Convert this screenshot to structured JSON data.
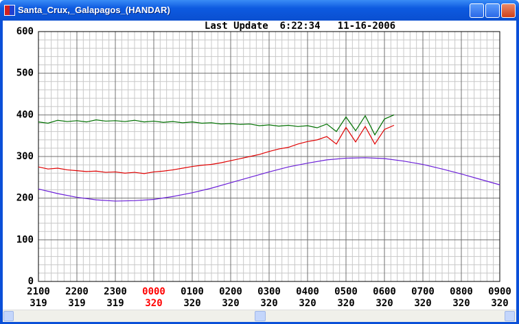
{
  "window_title": "Santa_Crux,_Galapagos_(HANDAR)",
  "chart_data": {
    "type": "line",
    "subtitle": "Last Update  6:22:34   11-16-2006",
    "xlim": [
      0,
      12
    ],
    "xticks": [
      {
        "value": 0,
        "label": "2100"
      },
      {
        "value": 1,
        "label": "2200"
      },
      {
        "value": 2,
        "label": "2300"
      },
      {
        "value": 3,
        "label": "0000"
      },
      {
        "value": 4,
        "label": "0100"
      },
      {
        "value": 5,
        "label": "0200"
      },
      {
        "value": 6,
        "label": "0300"
      },
      {
        "value": 7,
        "label": "0400"
      },
      {
        "value": 8,
        "label": "0500"
      },
      {
        "value": 9,
        "label": "0600"
      },
      {
        "value": 10,
        "label": "0700"
      },
      {
        "value": 11,
        "label": "0800"
      },
      {
        "value": 12,
        "label": "0900"
      }
    ],
    "xtick_days": [
      "319",
      "319",
      "319",
      "320",
      "320",
      "320",
      "320",
      "320",
      "320",
      "320",
      "320",
      "320",
      "320"
    ],
    "xtick_highlight": {
      "index": 3,
      "color": "#ff0000"
    },
    "ylim": [
      0,
      600
    ],
    "yticks": [
      0,
      100,
      200,
      300,
      400,
      500,
      600
    ],
    "grid": true,
    "series": [
      {
        "color": "#007000",
        "x": [
          0,
          0.25,
          0.5,
          0.75,
          1,
          1.25,
          1.5,
          1.75,
          2,
          2.25,
          2.5,
          2.75,
          3,
          3.25,
          3.5,
          3.75,
          4,
          4.25,
          4.5,
          4.75,
          5,
          5.25,
          5.5,
          5.75,
          6,
          6.25,
          6.5,
          6.75,
          7,
          7.25,
          7.5,
          7.75,
          8,
          8.25,
          8.5,
          8.75,
          9,
          9.25
        ],
        "values": [
          383,
          380,
          387,
          384,
          386,
          383,
          388,
          385,
          386,
          384,
          387,
          383,
          385,
          382,
          384,
          381,
          383,
          380,
          381,
          378,
          379,
          377,
          378,
          374,
          376,
          373,
          375,
          372,
          374,
          369,
          378,
          360,
          395,
          362,
          398,
          352,
          390,
          400
        ]
      },
      {
        "color": "#e00000",
        "x": [
          0,
          0.25,
          0.5,
          0.75,
          1,
          1.25,
          1.5,
          1.75,
          2,
          2.25,
          2.5,
          2.75,
          3,
          3.25,
          3.5,
          3.75,
          4,
          4.25,
          4.5,
          4.75,
          5,
          5.25,
          5.5,
          5.75,
          6,
          6.25,
          6.5,
          6.75,
          7,
          7.25,
          7.5,
          7.75,
          8,
          8.25,
          8.5,
          8.75,
          9,
          9.25
        ],
        "values": [
          275,
          270,
          272,
          268,
          266,
          264,
          265,
          262,
          263,
          260,
          262,
          259,
          263,
          265,
          268,
          272,
          276,
          279,
          281,
          285,
          290,
          295,
          300,
          305,
          312,
          318,
          322,
          330,
          336,
          340,
          348,
          330,
          370,
          335,
          372,
          330,
          365,
          375
        ]
      },
      {
        "color": "#6a1ed8",
        "x": [
          0,
          0.5,
          1,
          1.5,
          2,
          2.5,
          3,
          3.5,
          4,
          4.5,
          5,
          5.5,
          6,
          6.5,
          7,
          7.5,
          8,
          8.5,
          9,
          9.5,
          10,
          10.5,
          11,
          11.5,
          12
        ],
        "values": [
          222,
          211,
          202,
          196,
          193,
          194,
          197,
          204,
          213,
          224,
          237,
          250,
          263,
          275,
          284,
          292,
          296,
          297,
          295,
          289,
          281,
          270,
          258,
          245,
          232
        ]
      }
    ]
  }
}
